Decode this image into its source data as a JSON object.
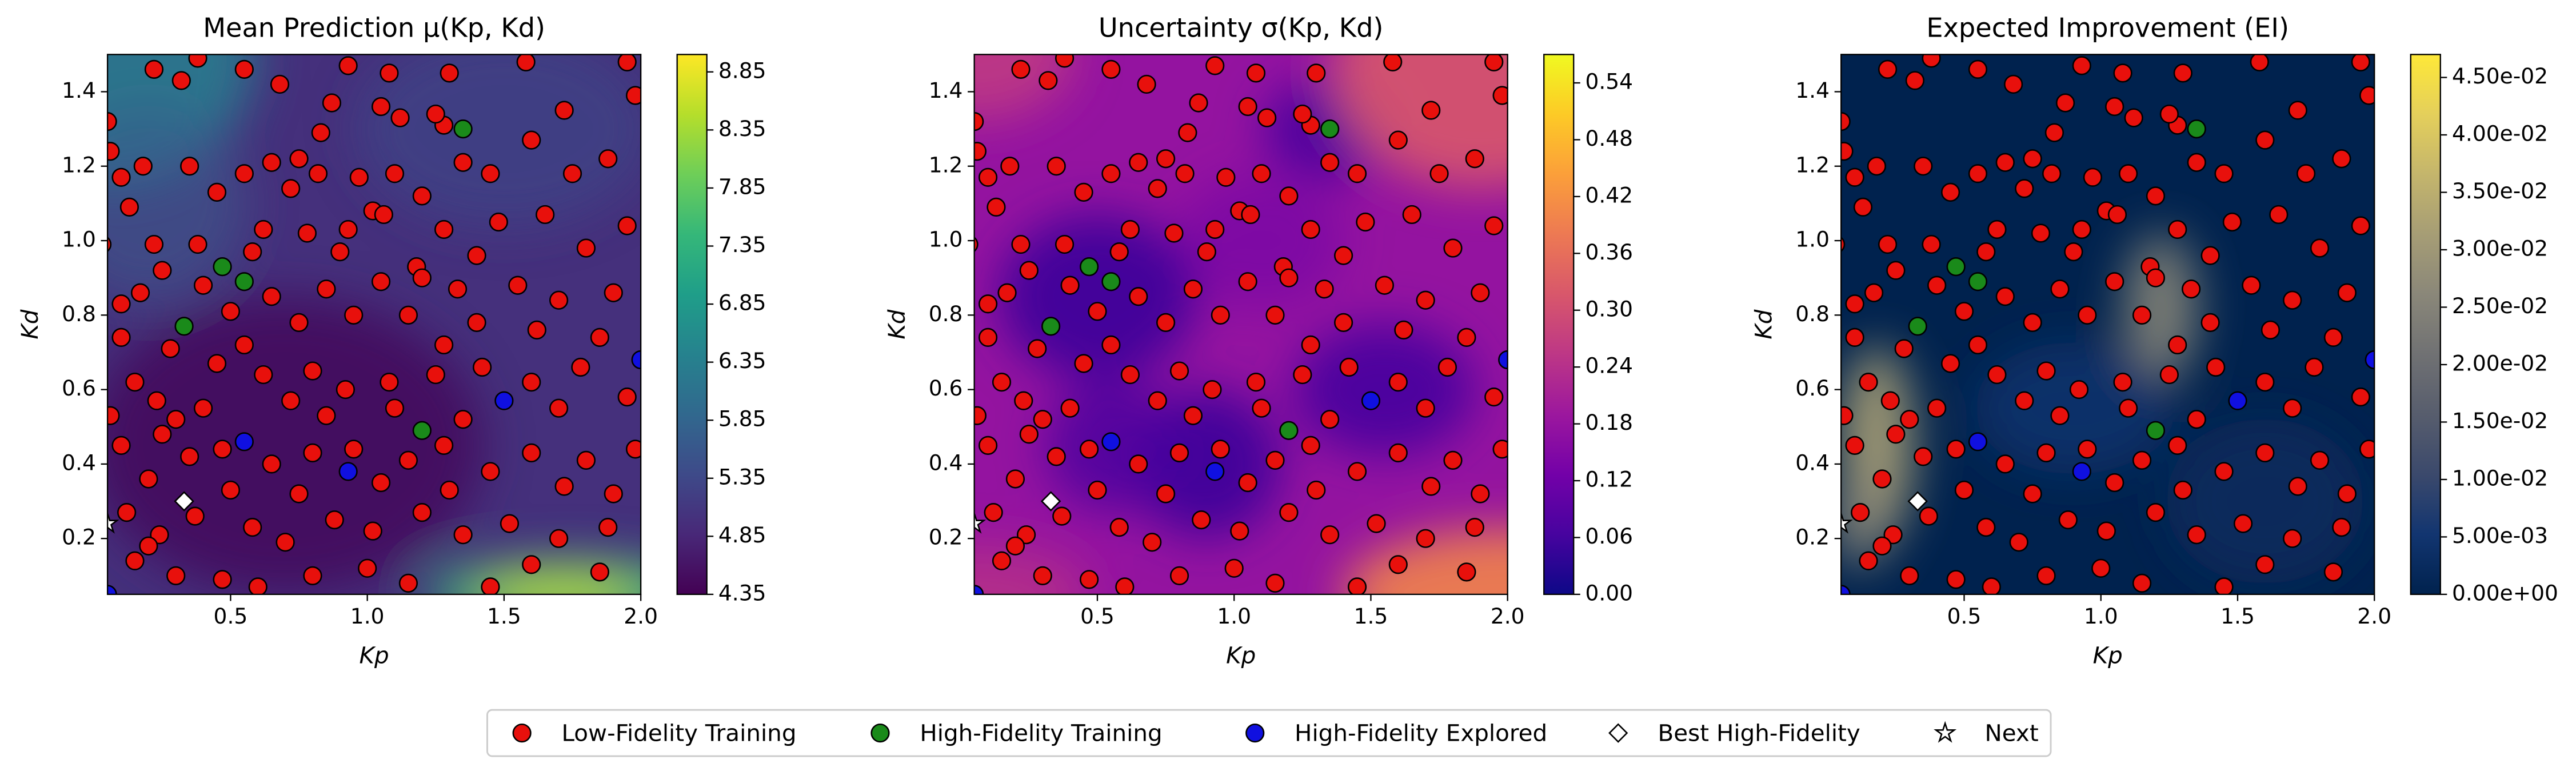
{
  "chart_data": [
    {
      "type": "heatmap",
      "title": "Mean Prediction μ(Kp, Kd)",
      "xlabel": "Kp",
      "ylabel": "Kd",
      "xlim": [
        0.05,
        2.0
      ],
      "ylim": [
        0.05,
        1.5
      ],
      "xticks": [
        0.5,
        {
          "value": 1,
          "label": "1.0"
        },
        1.5,
        {
          "value": 2,
          "label": "2.0"
        }
      ],
      "yticks": [
        0.2,
        0.4,
        0.6,
        0.8,
        {
          "value": 1,
          "label": "1.0"
        },
        1.2,
        1.4
      ],
      "colormap": "viridis",
      "clim": [
        4.35,
        9.0
      ],
      "cticks": [
        4.35,
        4.85,
        5.35,
        5.85,
        6.35,
        6.85,
        7.35,
        7.85,
        8.35,
        8.85
      ]
    },
    {
      "type": "heatmap",
      "title": "Uncertainty σ(Kp, Kd)",
      "xlabel": "Kp",
      "ylabel": "Kd",
      "xlim": [
        0.05,
        2.0
      ],
      "ylim": [
        0.05,
        1.5
      ],
      "xticks": [
        0.5,
        {
          "value": 1,
          "label": "1.0"
        },
        1.5,
        {
          "value": 2,
          "label": "2.0"
        }
      ],
      "yticks": [
        0.2,
        0.4,
        0.6,
        0.8,
        {
          "value": 1,
          "label": "1.0"
        },
        1.2,
        1.4
      ],
      "colormap": "plasma",
      "clim": [
        0,
        0.57
      ],
      "cticks": [
        {
          "value": 0,
          "label": "0.00"
        },
        0.06,
        0.12,
        0.18,
        0.24,
        {
          "value": 0.3,
          "label": "0.30"
        },
        0.36,
        0.42,
        0.48,
        0.54
      ]
    },
    {
      "type": "heatmap",
      "title": "Expected Improvement (EI)",
      "xlabel": "Kp",
      "ylabel": "Kd",
      "xlim": [
        0.05,
        2.0
      ],
      "ylim": [
        0.05,
        1.5
      ],
      "xticks": [
        0.5,
        {
          "value": 1,
          "label": "1.0"
        },
        1.5,
        {
          "value": 2,
          "label": "2.0"
        }
      ],
      "yticks": [
        0.2,
        0.4,
        0.6,
        0.8,
        {
          "value": 1,
          "label": "1.0"
        },
        1.2,
        1.4
      ],
      "colormap": "cividis",
      "clim": [
        0,
        0.047
      ],
      "cticks": [
        {
          "value": 0,
          "label": "0.00e+00"
        },
        {
          "value": 0.005,
          "label": "5.00e-03"
        },
        {
          "value": 0.01,
          "label": "1.00e-02"
        },
        {
          "value": 0.015,
          "label": "1.50e-02"
        },
        {
          "value": 0.02,
          "label": "2.00e-02"
        },
        {
          "value": 0.025,
          "label": "2.50e-02"
        },
        {
          "value": 0.03,
          "label": "3.00e-02"
        },
        {
          "value": 0.035,
          "label": "3.50e-02"
        },
        {
          "value": 0.04,
          "label": "4.00e-02"
        },
        {
          "value": 0.045,
          "label": "4.50e-02"
        }
      ]
    }
  ],
  "scatter": {
    "series": [
      {
        "name": "Low-Fidelity Training",
        "color": "#e8100c",
        "marker": "circle",
        "x": [
          0.22,
          0.32,
          0.38,
          0.55,
          0.68,
          0.93,
          1.08,
          1.3,
          1.58,
          1.95,
          0.05,
          0.87,
          1.05,
          1.12,
          1.28,
          1.72,
          1.98,
          0.83,
          1.25,
          0.06,
          0.1,
          0.18,
          0.35,
          0.55,
          0.65,
          0.75,
          0.82,
          0.97,
          1.1,
          1.35,
          1.45,
          1.6,
          1.75,
          1.88,
          0.45,
          0.72,
          1.2,
          0.13,
          0.03,
          0.22,
          0.38,
          0.62,
          0.78,
          0.93,
          1.02,
          1.06,
          1.28,
          1.48,
          1.65,
          1.95,
          1.8,
          0.9,
          1.18,
          1.4,
          0.25,
          0.58,
          0.1,
          0.17,
          0.4,
          0.65,
          0.85,
          1.05,
          1.2,
          1.33,
          1.55,
          1.7,
          1.9,
          0.5,
          0.75,
          0.95,
          1.15,
          1.4,
          1.62,
          1.85,
          0.1,
          0.28,
          0.55,
          1.28,
          0.15,
          0.23,
          0.45,
          0.62,
          0.8,
          0.92,
          1.08,
          1.25,
          1.42,
          1.6,
          1.78,
          1.95,
          0.3,
          0.4,
          0.72,
          0.85,
          1.1,
          1.35,
          1.7,
          0.06,
          0.1,
          0.25,
          0.35,
          0.47,
          0.65,
          0.8,
          0.95,
          1.15,
          1.28,
          1.45,
          1.6,
          1.8,
          1.98,
          0.2,
          0.5,
          0.75,
          1.05,
          1.3,
          1.72,
          1.9,
          0.12,
          0.24,
          0.37,
          0.58,
          0.7,
          0.88,
          1.02,
          1.2,
          1.35,
          1.52,
          1.7,
          1.88,
          0.15,
          0.3,
          0.47,
          0.6,
          0.8,
          1.0,
          1.15,
          1.45,
          1.6,
          1.85,
          0.2
        ],
        "y": [
          1.46,
          1.43,
          1.49,
          1.46,
          1.42,
          1.47,
          1.45,
          1.45,
          1.48,
          1.48,
          1.32,
          1.37,
          1.36,
          1.33,
          1.31,
          1.35,
          1.39,
          1.29,
          1.34,
          1.24,
          1.17,
          1.2,
          1.2,
          1.18,
          1.21,
          1.22,
          1.18,
          1.17,
          1.18,
          1.21,
          1.18,
          1.27,
          1.18,
          1.22,
          1.13,
          1.14,
          1.12,
          1.09,
          0.99,
          0.99,
          0.99,
          1.03,
          1.02,
          1.03,
          1.08,
          1.07,
          1.03,
          1.05,
          1.07,
          1.04,
          0.98,
          0.97,
          0.93,
          0.96,
          0.92,
          0.97,
          0.83,
          0.86,
          0.88,
          0.85,
          0.87,
          0.89,
          0.9,
          0.87,
          0.88,
          0.84,
          0.86,
          0.81,
          0.78,
          0.8,
          0.8,
          0.78,
          0.76,
          0.74,
          0.74,
          0.71,
          0.72,
          0.72,
          0.62,
          0.57,
          0.67,
          0.64,
          0.65,
          0.6,
          0.62,
          0.64,
          0.66,
          0.62,
          0.66,
          0.58,
          0.52,
          0.55,
          0.57,
          0.53,
          0.55,
          0.52,
          0.55,
          0.53,
          0.45,
          0.48,
          0.42,
          0.44,
          0.4,
          0.43,
          0.44,
          0.41,
          0.45,
          0.38,
          0.43,
          0.41,
          0.44,
          0.36,
          0.33,
          0.32,
          0.35,
          0.33,
          0.34,
          0.32,
          0.27,
          0.21,
          0.26,
          0.23,
          0.19,
          0.25,
          0.22,
          0.27,
          0.21,
          0.24,
          0.2,
          0.23,
          0.14,
          0.1,
          0.09,
          0.07,
          0.1,
          0.12,
          0.08,
          0.07,
          0.13,
          0.11,
          0.18
        ]
      },
      {
        "name": "High-Fidelity Training",
        "color": "#1a8a1a",
        "marker": "circle",
        "x": [
          0.47,
          0.55,
          0.33,
          1.2,
          1.35
        ],
        "y": [
          0.93,
          0.89,
          0.77,
          0.49,
          1.3
        ]
      },
      {
        "name": "High-Fidelity Explored",
        "color": "#1010e0",
        "marker": "circle",
        "x": [
          0.55,
          0.93,
          1.5,
          2.0,
          0.05
        ],
        "y": [
          0.46,
          0.38,
          0.57,
          0.68,
          0.05
        ]
      },
      {
        "name": "Best High-Fidelity",
        "color": "#ffffff",
        "marker": "diamond",
        "x": [
          0.33
        ],
        "y": [
          0.3
        ]
      },
      {
        "name": "Next",
        "color": "#ffffff",
        "marker": "star",
        "x": [
          0.05
        ],
        "y": [
          0.24
        ]
      }
    ]
  }
}
